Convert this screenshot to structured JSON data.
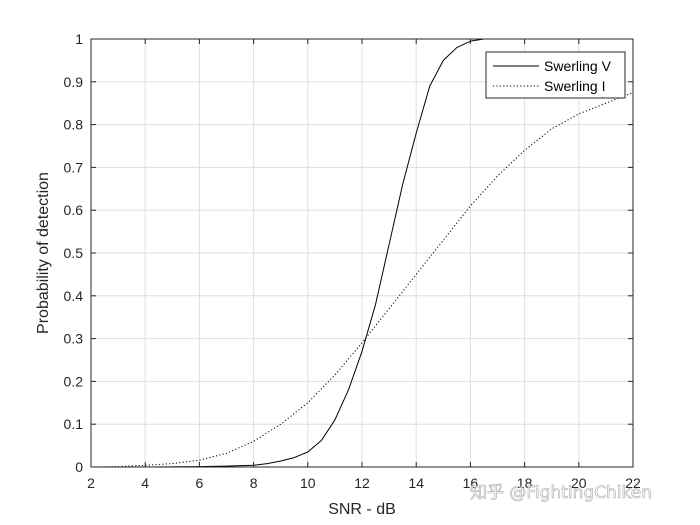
{
  "chart_data": {
    "type": "line",
    "title": "",
    "xlabel": "SNR - dB",
    "ylabel": "Probability of detection",
    "xlim": [
      2,
      22
    ],
    "ylim": [
      0,
      1
    ],
    "xticks": [
      2,
      4,
      6,
      8,
      10,
      12,
      14,
      16,
      18,
      20,
      22
    ],
    "yticks": [
      0,
      0.1,
      0.2,
      0.3,
      0.4,
      0.5,
      0.6,
      0.7,
      0.8,
      0.9,
      1
    ],
    "grid": true,
    "legend_position": "top-right",
    "series": [
      {
        "name": "Swerling V",
        "style": "solid",
        "color": "#000000",
        "x": [
          2,
          4,
          6,
          7,
          8,
          8.5,
          9,
          9.5,
          10,
          10.5,
          11,
          11.5,
          12,
          12.5,
          13,
          13.5,
          14,
          14.5,
          15,
          15.5,
          16,
          16.5,
          17,
          18,
          20,
          22
        ],
        "y": [
          0,
          0,
          0.001,
          0.002,
          0.004,
          0.008,
          0.014,
          0.022,
          0.035,
          0.062,
          0.11,
          0.18,
          0.27,
          0.38,
          0.52,
          0.66,
          0.78,
          0.89,
          0.95,
          0.98,
          0.995,
          1.0,
          1.0,
          1.0,
          1.0,
          1.0
        ]
      },
      {
        "name": "Swerling I",
        "style": "dotted",
        "color": "#000000",
        "x": [
          2,
          3,
          4,
          5,
          6,
          7,
          8,
          9,
          10,
          11,
          12,
          12.5,
          13,
          14,
          15,
          16,
          17,
          18,
          19,
          20,
          21,
          22
        ],
        "y": [
          0,
          0.001,
          0.004,
          0.008,
          0.016,
          0.032,
          0.06,
          0.1,
          0.15,
          0.215,
          0.29,
          0.33,
          0.37,
          0.45,
          0.53,
          0.61,
          0.68,
          0.74,
          0.79,
          0.825,
          0.85,
          0.875
        ]
      }
    ]
  },
  "watermark": {
    "text": "知乎 @FightingChiken"
  }
}
